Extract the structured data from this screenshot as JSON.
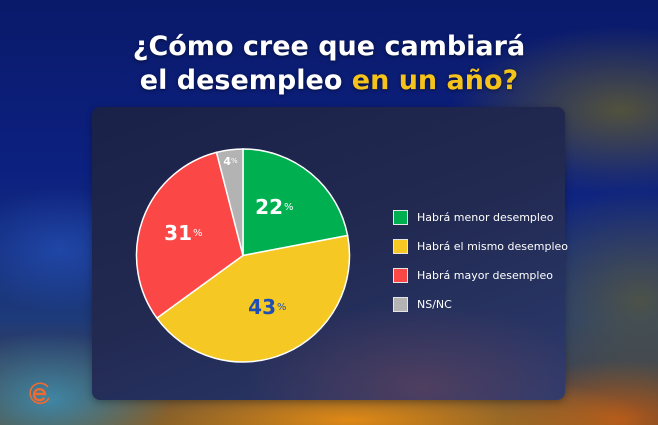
{
  "title": {
    "line1": "¿Cómo cree que cambiará",
    "line2_plain": "el desempleo ",
    "line2_highlight": "en un año?",
    "highlight_color": "#f6c31a"
  },
  "chart_data": {
    "type": "pie",
    "title": "¿Cómo cree que cambiará el desempleo en un año?",
    "categories": [
      "Habrá menor desempleo",
      "Habrá el mismo desempleo",
      "Habrá mayor desempleo",
      "NS/NC"
    ],
    "values": [
      22,
      43,
      31,
      4
    ],
    "unit": "%",
    "colors": [
      "#00b050",
      "#f5c823",
      "#fc4747",
      "#b3b3b3"
    ],
    "label_colors": [
      "#ffffff",
      "#1f4fb5",
      "#ffffff",
      "#ffffff"
    ],
    "start_angle_deg": 0,
    "direction": "clockwise",
    "legend_position": "right"
  },
  "slices": [
    {
      "value": "22",
      "pct": "%"
    },
    {
      "value": "43",
      "pct": "%"
    },
    {
      "value": "31",
      "pct": "%"
    },
    {
      "value": "4",
      "pct": "%"
    }
  ],
  "legend": [
    {
      "label": "Habrá menor desempleo",
      "color": "#00b050"
    },
    {
      "label": "Habrá el mismo desempleo",
      "color": "#f5c823"
    },
    {
      "label": "Habrá mayor desempleo",
      "color": "#fc4747"
    },
    {
      "label": "NS/NC",
      "color": "#b3b3b3"
    }
  ],
  "logo": {
    "icon": "e-logo-icon",
    "color": "#f26a2e"
  }
}
